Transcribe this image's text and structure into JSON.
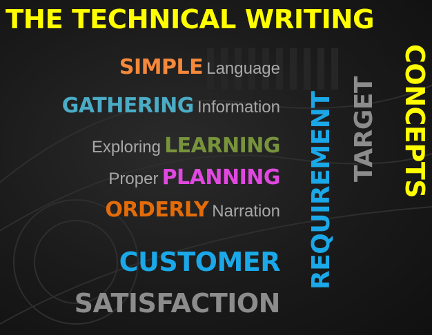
{
  "title": "THE TECHNICAL WRITING",
  "rows": [
    {
      "highlight": "SIMPLE",
      "word": "Language"
    },
    {
      "highlight": "GATHERING",
      "word": "Information"
    },
    {
      "word": "Exploring",
      "highlight": "LEARNING"
    },
    {
      "word": "Proper",
      "highlight": "PLANNING"
    },
    {
      "highlight": "ORDERLY",
      "word": "Narration"
    }
  ],
  "customer": "CUSTOMER",
  "satisfaction": "SATISFACTION",
  "vertical": {
    "requirement": "REQUIREMENT",
    "target": "TARGET",
    "concepts": "CONCEPTS"
  },
  "colors": {
    "title": "#ffff00",
    "simple": "#f5883a",
    "gathering": "#4bacc6",
    "learning": "#77933c",
    "planning": "#e048e0",
    "orderly": "#e36c09",
    "customer": "#1aa8e8",
    "satisfaction": "#8c8c8c",
    "secondary_text": "#a8a8a8",
    "background": "#1a1a1a"
  }
}
